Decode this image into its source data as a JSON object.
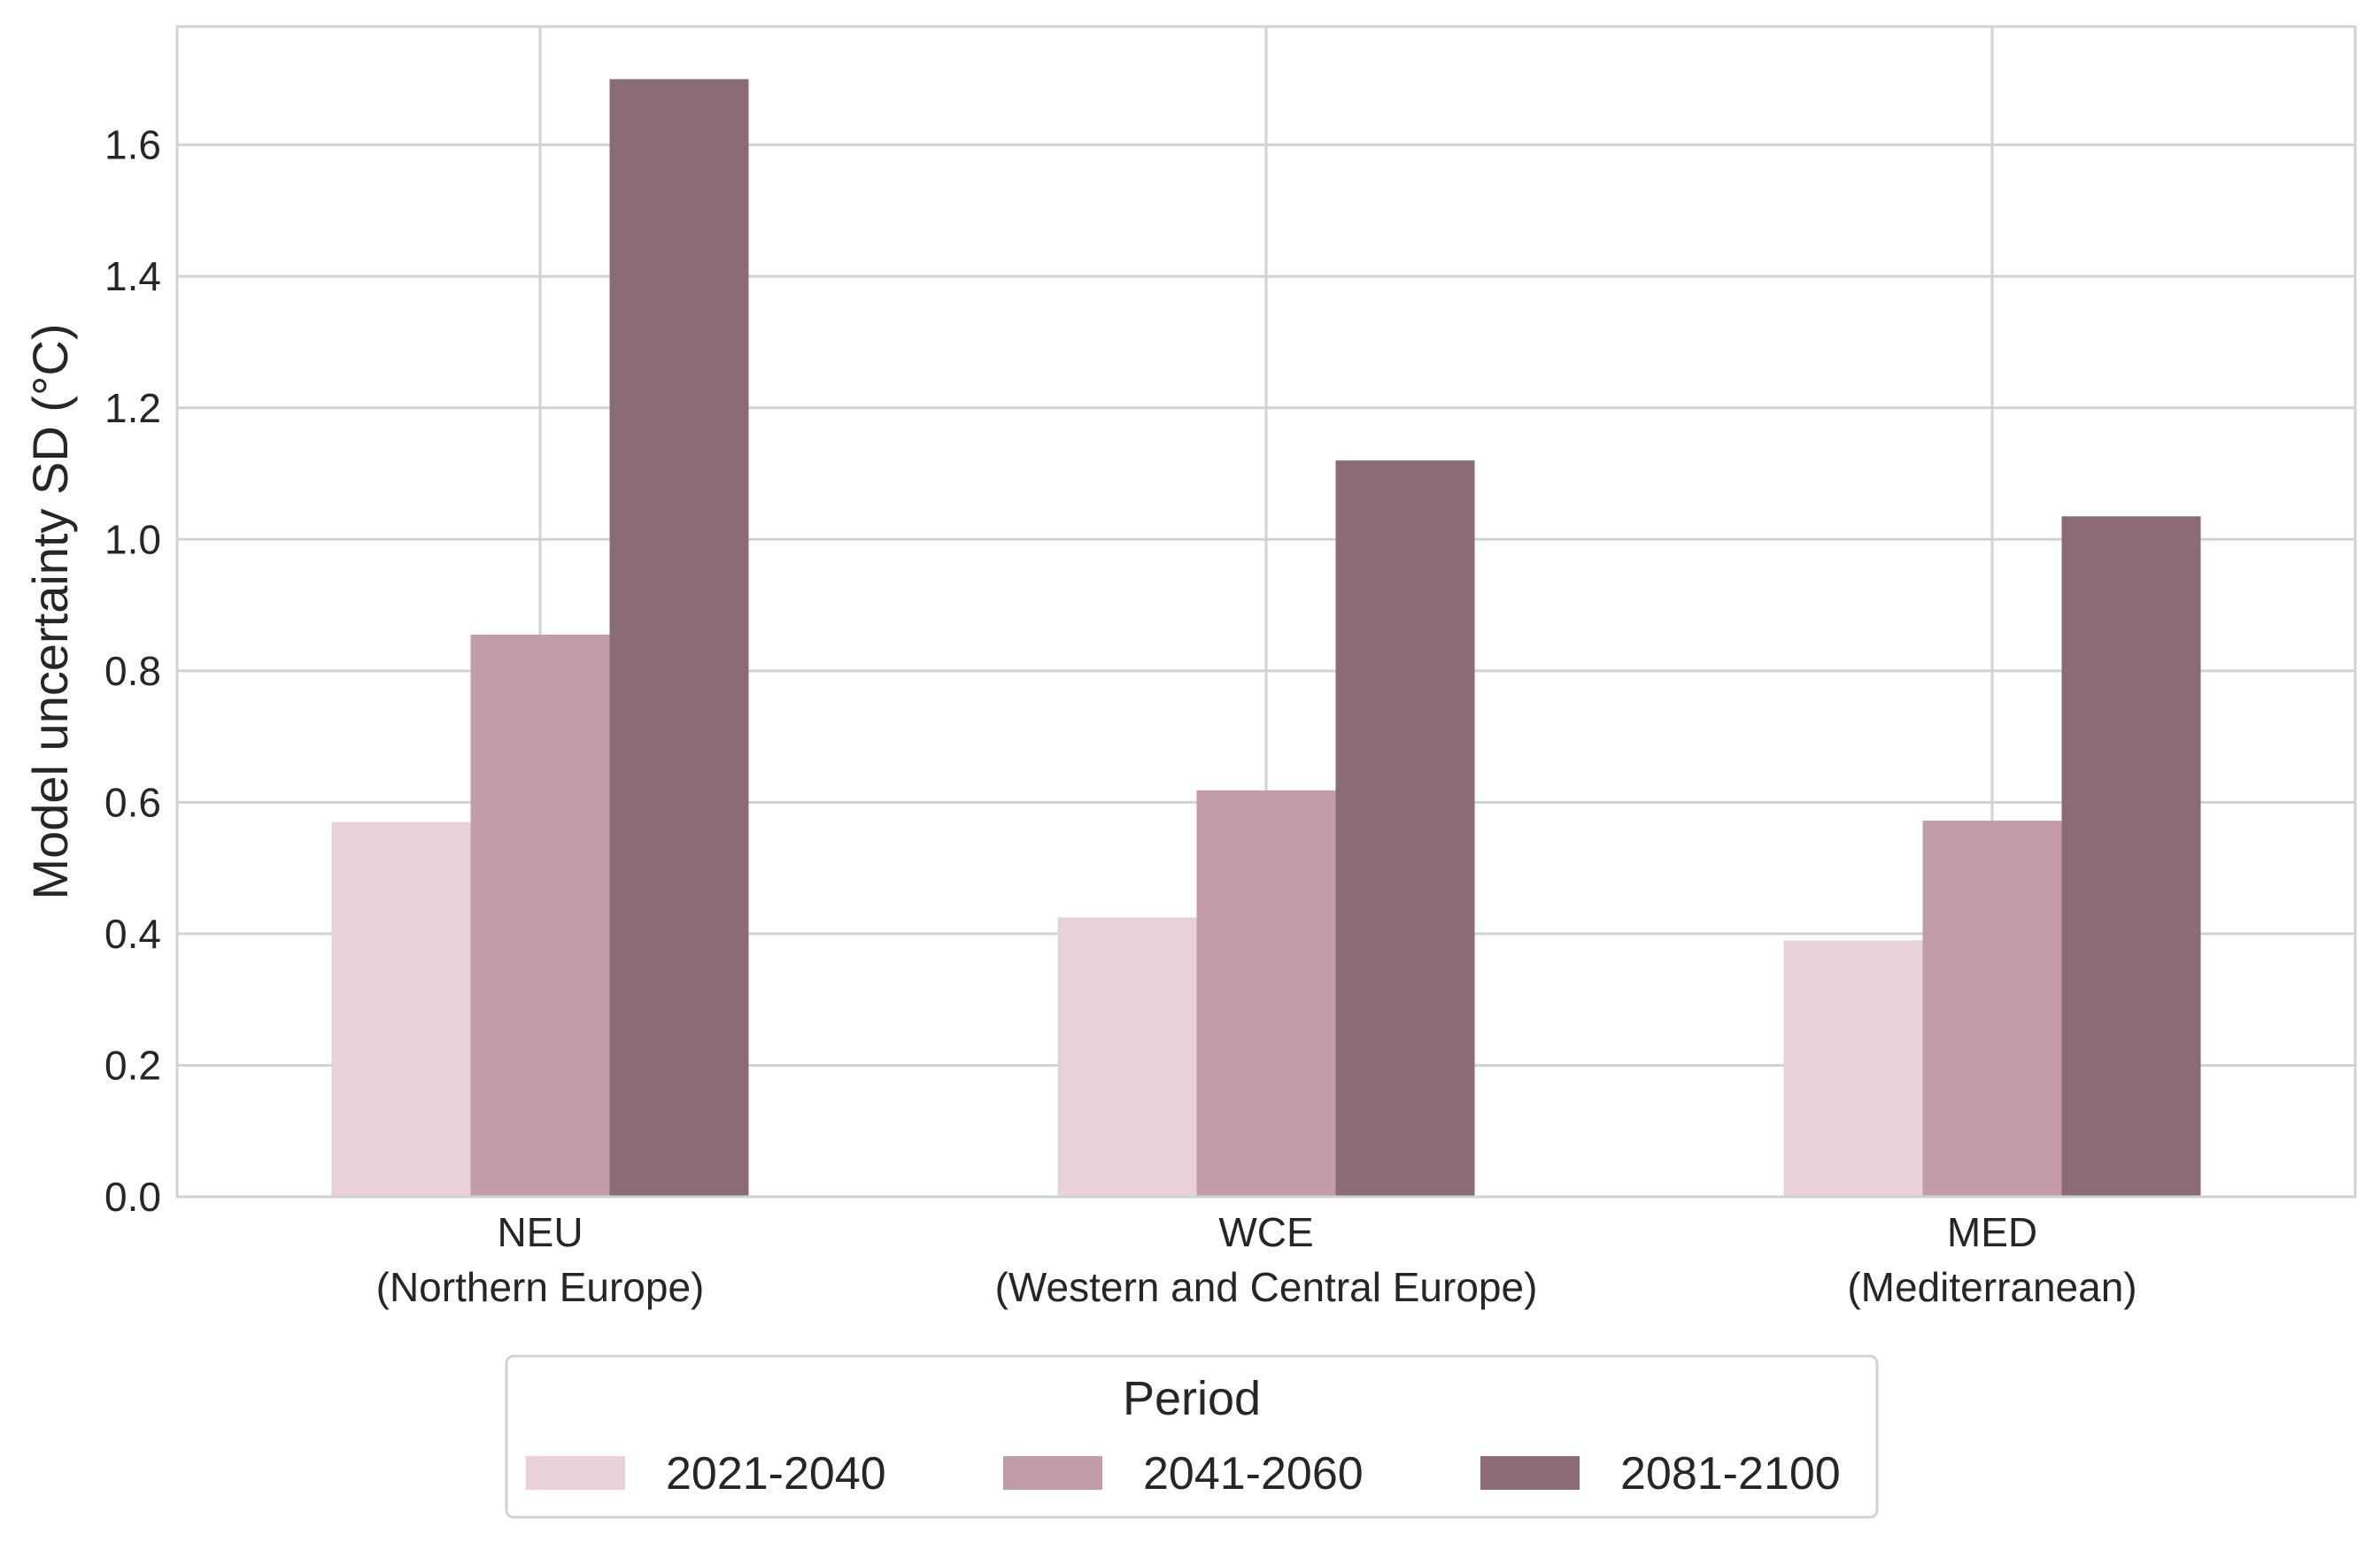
{
  "chart_data": {
    "type": "bar",
    "ylabel": "Model uncertainty SD (°C)",
    "ylim": [
      0,
      1.78
    ],
    "yticks": [
      "0.0",
      "0.2",
      "0.4",
      "0.6",
      "0.8",
      "1.0",
      "1.2",
      "1.4",
      "1.6"
    ],
    "grid": true,
    "categories": [
      {
        "line1": "NEU",
        "line2": "(Northern Europe)"
      },
      {
        "line1": "WCE",
        "line2": "(Western and Central Europe)"
      },
      {
        "line1": "MED",
        "line2": "(Mediterranean)"
      }
    ],
    "series": [
      {
        "name": "2021-2040",
        "color": "#e8d1d7",
        "values": [
          0.57,
          0.425,
          0.39
        ]
      },
      {
        "name": "2041-2060",
        "color": "#c49ba8",
        "values": [
          0.855,
          0.618,
          0.572
        ]
      },
      {
        "name": "2081-2100",
        "color": "#8b6b75",
        "values": [
          1.7,
          1.12,
          1.035
        ]
      }
    ],
    "legend": {
      "title": "Period",
      "placement": "bottom-center"
    }
  }
}
